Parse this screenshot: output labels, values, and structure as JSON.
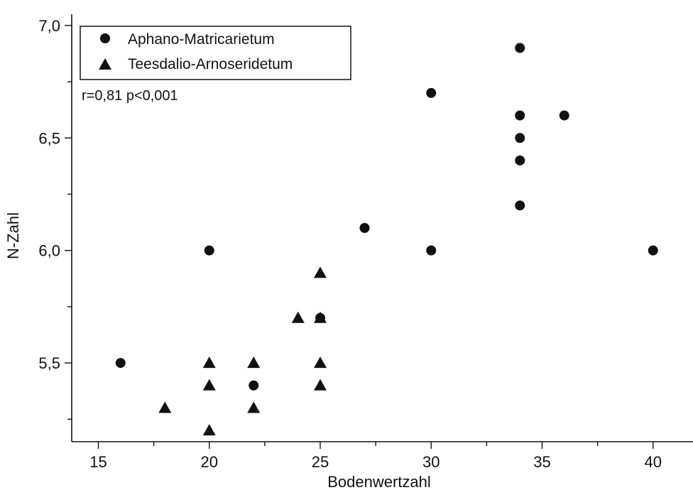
{
  "chart_data": {
    "type": "scatter",
    "title": "",
    "xlabel": "Bodenwertzahl",
    "ylabel": "N-Zahl",
    "xlim": [
      13.8,
      41.8
    ],
    "ylim": [
      5.15,
      7.05
    ],
    "x_ticks": [
      15,
      20,
      25,
      30,
      35,
      40
    ],
    "x_tick_labels": [
      "15",
      "20",
      "25",
      "30",
      "35",
      "40"
    ],
    "y_ticks": [
      5.5,
      6.0,
      6.5,
      7.0
    ],
    "y_tick_labels": [
      "5,5",
      "6,0",
      "6,5",
      "7,0"
    ],
    "grid": false,
    "legend_position": "top-left",
    "annotation": "r=0,81  p<0,001",
    "series": [
      {
        "name": "Aphano-Matricarietum",
        "marker": "circle",
        "points": [
          [
            16,
            5.5
          ],
          [
            20,
            6.0
          ],
          [
            22,
            5.4
          ],
          [
            25,
            5.7
          ],
          [
            27,
            6.1
          ],
          [
            30,
            6.7
          ],
          [
            30,
            6.0
          ],
          [
            34,
            6.9
          ],
          [
            34,
            6.6
          ],
          [
            34,
            6.5
          ],
          [
            34,
            6.4
          ],
          [
            34,
            6.2
          ],
          [
            36,
            6.6
          ],
          [
            40,
            6.0
          ]
        ]
      },
      {
        "name": "Teesdalio-Arnoseridetum",
        "marker": "triangle",
        "points": [
          [
            18,
            5.3
          ],
          [
            20,
            5.5
          ],
          [
            20,
            5.4
          ],
          [
            20,
            5.2
          ],
          [
            22,
            5.5
          ],
          [
            22,
            5.3
          ],
          [
            24,
            5.7
          ],
          [
            25,
            5.9
          ],
          [
            25,
            5.7
          ],
          [
            25,
            5.5
          ],
          [
            25,
            5.4
          ]
        ]
      }
    ]
  }
}
